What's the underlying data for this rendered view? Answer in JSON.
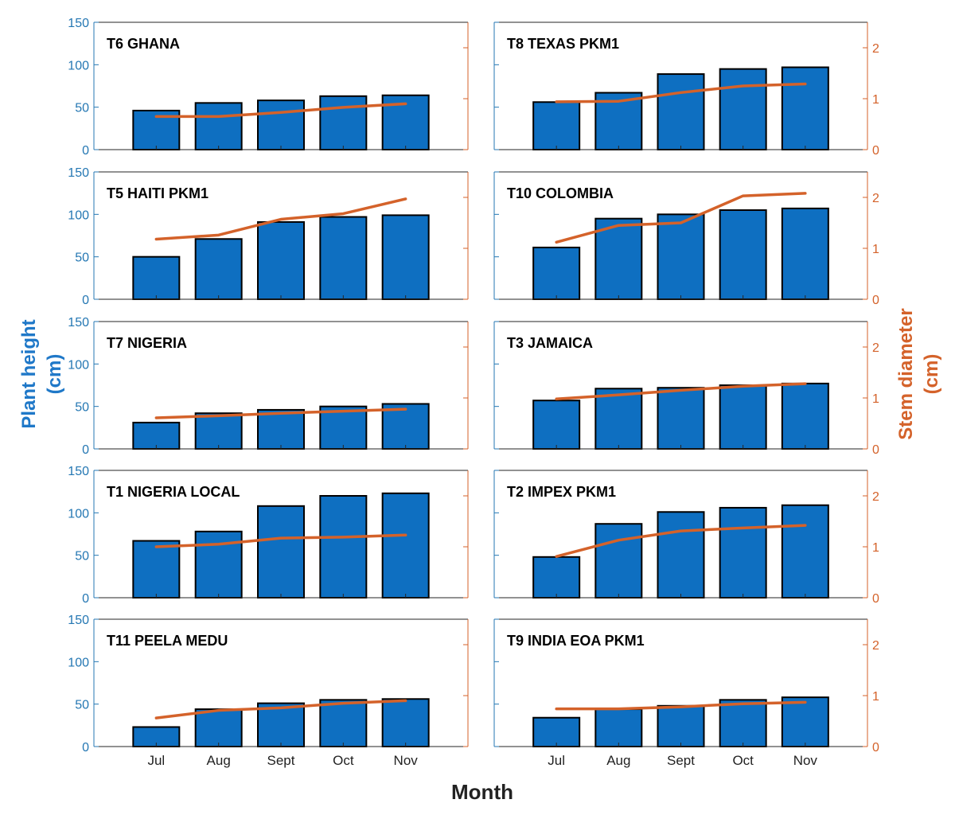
{
  "figure": {
    "ylabel_left": [
      "Plant height",
      "(cm)"
    ],
    "ylabel_right": [
      "Stem diameter",
      "(cm)"
    ],
    "xlabel": "Month"
  },
  "chart_data": {
    "type": "bar",
    "categories": [
      "Jul",
      "Aug",
      "Sept",
      "Oct",
      "Nov"
    ],
    "left_axis": {
      "ylim": [
        0,
        150
      ],
      "ticks": [
        0,
        50,
        100,
        150
      ],
      "color": "#2477b3"
    },
    "right_axis": {
      "ylim": [
        0,
        2.5
      ],
      "ticks": [
        0,
        1,
        2
      ],
      "color": "#d4622a"
    },
    "bar_color": "#0e6fc1",
    "line_color": "#d4622a",
    "grid": false,
    "panels": [
      {
        "title": "T6 GHANA",
        "height": [
          46,
          55,
          58,
          63,
          64
        ],
        "diameter": [
          0.65,
          0.65,
          0.73,
          0.83,
          0.9
        ]
      },
      {
        "title": "T8 TEXAS PKM1",
        "height": [
          56,
          67,
          89,
          95,
          97
        ],
        "diameter": [
          0.94,
          0.95,
          1.12,
          1.25,
          1.29
        ]
      },
      {
        "title": "T5 HAITI PKM1",
        "height": [
          50,
          71,
          91,
          97,
          99
        ],
        "diameter": [
          1.18,
          1.26,
          1.57,
          1.68,
          1.97
        ]
      },
      {
        "title": "T10 COLOMBIA",
        "height": [
          61,
          95,
          100,
          105,
          107
        ],
        "diameter": [
          1.12,
          1.45,
          1.5,
          2.03,
          2.08
        ]
      },
      {
        "title": "T7 NIGERIA",
        "height": [
          31,
          42,
          46,
          50,
          53
        ],
        "diameter": [
          0.61,
          0.65,
          0.7,
          0.74,
          0.78
        ]
      },
      {
        "title": "T3 JAMAICA",
        "height": [
          57,
          71,
          72,
          75,
          77
        ],
        "diameter": [
          0.98,
          1.06,
          1.15,
          1.23,
          1.28
        ]
      },
      {
        "title": "T1 NIGERIA LOCAL",
        "height": [
          67,
          78,
          108,
          120,
          123
        ],
        "diameter": [
          1.0,
          1.05,
          1.17,
          1.19,
          1.23
        ]
      },
      {
        "title": "T2 IMPEX PKM1",
        "height": [
          48,
          87,
          101,
          106,
          109
        ],
        "diameter": [
          0.81,
          1.13,
          1.31,
          1.37,
          1.42
        ]
      },
      {
        "title": "T11 PEELA MEDU",
        "height": [
          23,
          44,
          51,
          55,
          56
        ],
        "diameter": [
          0.56,
          0.71,
          0.76,
          0.85,
          0.9
        ]
      },
      {
        "title": "T9 INDIA EOA PKM1",
        "height": [
          34,
          44,
          48,
          55,
          58
        ],
        "diameter": [
          0.74,
          0.74,
          0.78,
          0.84,
          0.87
        ]
      }
    ]
  }
}
